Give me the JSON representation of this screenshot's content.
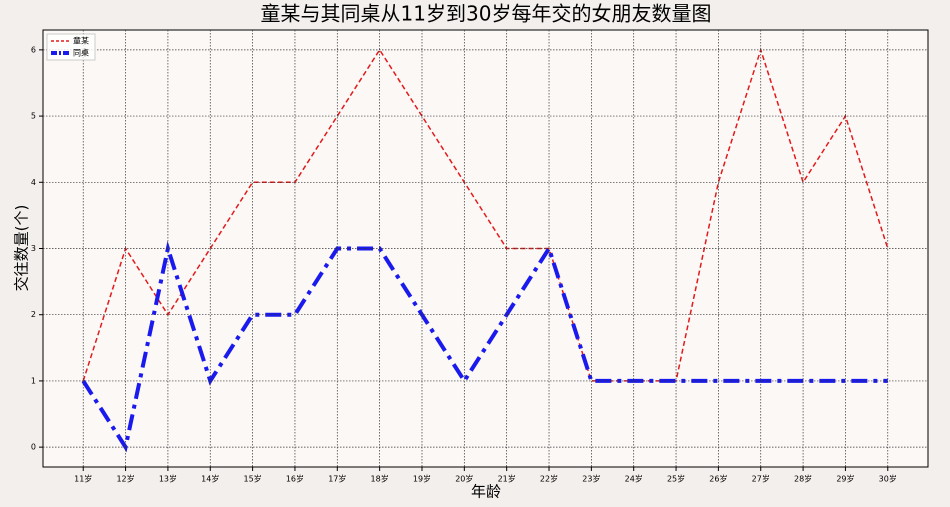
{
  "chart_data": {
    "type": "line",
    "title": "童某与其同桌从11岁到30岁每年交的女朋友数量图",
    "x_label": "年龄",
    "y_label": "交往数量(个)",
    "categories": [
      "11岁",
      "12岁",
      "13岁",
      "14岁",
      "15岁",
      "16岁",
      "17岁",
      "18岁",
      "19岁",
      "20岁",
      "21岁",
      "22岁",
      "23岁",
      "24岁",
      "25岁",
      "26岁",
      "27岁",
      "28岁",
      "29岁",
      "30岁"
    ],
    "series": [
      {
        "name": "童某",
        "color": "#e31a1c",
        "style": "dashed",
        "values": [
          1,
          3,
          2,
          3,
          4,
          4,
          5,
          6,
          5,
          4,
          3,
          3,
          1,
          1,
          1,
          4,
          6,
          4,
          5,
          3
        ]
      },
      {
        "name": "同桌",
        "color": "#1a1aee",
        "style": "dashdot",
        "values": [
          1,
          0,
          3,
          1,
          2,
          2,
          3,
          3,
          2,
          1,
          2,
          3,
          1,
          1,
          1,
          1,
          1,
          1,
          1,
          1
        ]
      }
    ],
    "ylim": [
      -0.3,
      6.3
    ],
    "yticks": [
      0,
      1,
      2,
      3,
      4,
      5,
      6
    ],
    "grid": true,
    "legend": "upper-left"
  }
}
